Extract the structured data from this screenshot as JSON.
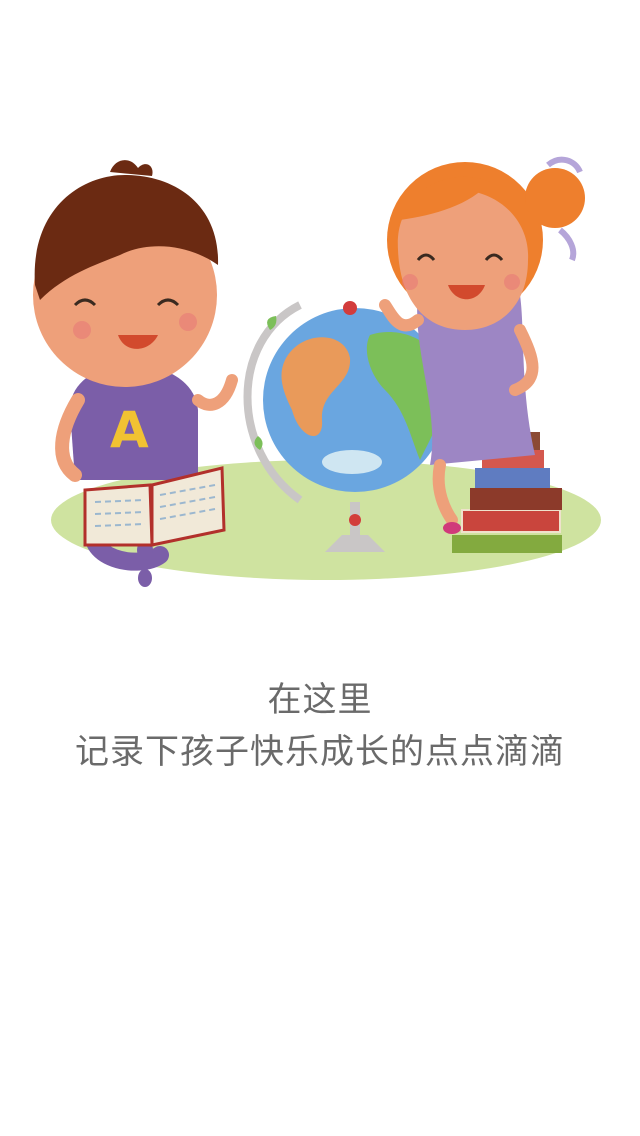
{
  "onboarding": {
    "headline": "在这里",
    "subline": "记录下孩子快乐成长的点点滴滴"
  },
  "illustration": {
    "shirt_letter": "A",
    "icons": [
      "boy-icon",
      "girl-icon",
      "globe-icon",
      "open-book-icon",
      "book-stack-icon"
    ]
  },
  "colors": {
    "background": "#ffffff",
    "text": "#6a6a6a",
    "grass": "#cfe3a0",
    "ocean": "#6aa6e0",
    "girl_hair": "#ee7f2d",
    "boy_hair": "#6b2a12",
    "boy_shirt": "#7b5ea8",
    "girl_dress": "#9d86c4"
  }
}
